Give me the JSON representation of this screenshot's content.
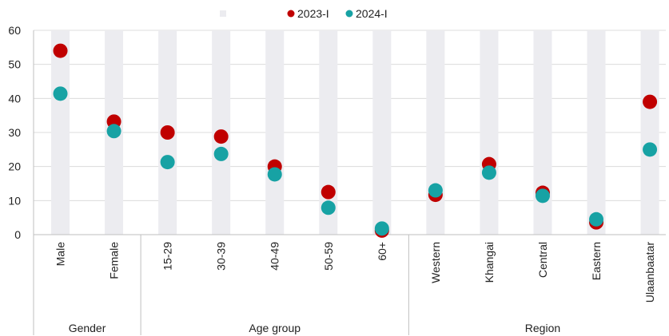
{
  "chart_data": {
    "type": "scatter",
    "categories": [
      "Male",
      "Female",
      "15-29",
      "30-39",
      "40-49",
      "50-59",
      "60+",
      "Western",
      "Khangai",
      "Central",
      "Eastern",
      "Ulaanbaatar"
    ],
    "groups": [
      {
        "label": "Gender",
        "count": 2
      },
      {
        "label": "Age group",
        "count": 5
      },
      {
        "label": "Region",
        "count": 5
      }
    ],
    "series": [
      {
        "name": "2023-I",
        "color": "#c00000",
        "values": [
          54.0,
          33.2,
          30.0,
          28.8,
          20.0,
          12.5,
          1.2,
          11.7,
          20.7,
          12.3,
          3.6,
          39.0
        ]
      },
      {
        "name": "2024-I",
        "color": "#17a2a4",
        "values": [
          41.4,
          30.4,
          21.3,
          23.7,
          17.7,
          7.9,
          1.8,
          13.0,
          18.2,
          11.4,
          4.5,
          25.0
        ]
      }
    ],
    "legend_placeholder_color": "#ececf0",
    "band_color": "#ececf0",
    "ylim": [
      0,
      60
    ],
    "yticks": [
      "0",
      "10",
      "20",
      "30",
      "40",
      "50",
      "60"
    ],
    "grid": true,
    "legend_position": "top-center"
  }
}
